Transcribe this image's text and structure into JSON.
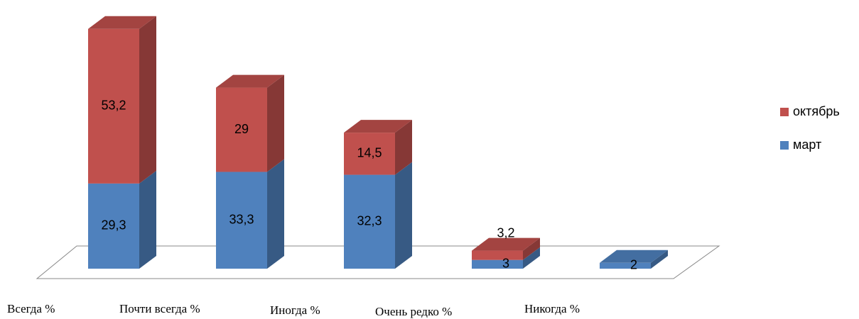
{
  "chart_data": {
    "type": "bar3d_stacked",
    "categories": [
      "Всегда %",
      "Почти всегда %",
      "Иногда %",
      "Очень редко %",
      "Никогда %"
    ],
    "series": [
      {
        "name": "март",
        "color": "#4f81bd",
        "values": [
          29.3,
          33.3,
          32.3,
          3,
          2
        ],
        "value_labels": [
          "29,3",
          "33,3",
          "32,3",
          "3",
          "2"
        ]
      },
      {
        "name": "октябрь",
        "color": "#c0504d",
        "values": [
          53.2,
          29,
          14.5,
          3.2,
          null
        ],
        "value_labels": [
          "53,2",
          "29",
          "14,5",
          "3,2",
          null
        ]
      }
    ],
    "legend": "right"
  }
}
